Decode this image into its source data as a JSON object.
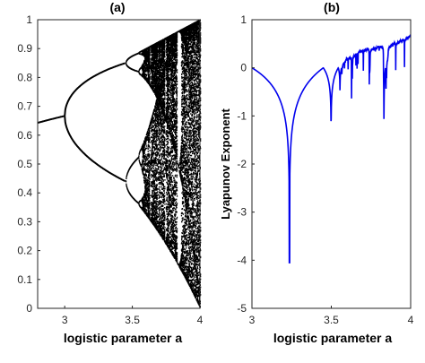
{
  "chart_data": [
    {
      "type": "scatter",
      "title": "(a)",
      "xlabel": "logistic parameter a",
      "ylabel": "",
      "xlim": [
        2.8,
        4
      ],
      "ylim": [
        0,
        1
      ],
      "xticks": [
        "3",
        "3.5",
        "4"
      ],
      "yticks": [
        "0",
        "0.1",
        "0.2",
        "0.3",
        "0.4",
        "0.5",
        "0.6",
        "0.7",
        "0.8",
        "0.9",
        "1"
      ],
      "grid": false,
      "legend": "none",
      "color": "#000000",
      "series": [
        {
          "description_values": {
            "x": [
              2.8,
              2.9,
              3.0,
              3.1,
              3.2,
              3.3,
              3.4,
              3.45,
              3.5,
              3.55,
              3.57,
              4.0
            ],
            "fixed_point_y": [
              0.643,
              0.655,
              0.667
            ],
            "period2_upper_y": [
              0.765,
              0.799,
              0.824,
              0.842,
              0.852
            ],
            "period2_lower_y": [
              0.558,
              0.513,
              0.48,
              0.452,
              0.44
            ]
          }
        }
      ]
    },
    {
      "type": "line",
      "title": "(b)",
      "xlabel": "logistic parameter a",
      "ylabel": "Lyapunov Exponent",
      "xlim": [
        3,
        4
      ],
      "ylim": [
        -5,
        1
      ],
      "xticks": [
        "3",
        "3.5",
        "4"
      ],
      "yticks": [
        "-5",
        "-4",
        "-3",
        "-2",
        "-1",
        "0",
        "1"
      ],
      "grid": false,
      "legend": "none",
      "color": "#0000ee",
      "series": [
        {
          "x": [
            3.0,
            3.05,
            3.1,
            3.15,
            3.2,
            3.22,
            3.236,
            3.25,
            3.3,
            3.35,
            3.4,
            3.44,
            3.45,
            3.47,
            3.49,
            3.499,
            3.51,
            3.54,
            3.55,
            3.57,
            3.6,
            3.63,
            3.65,
            3.7,
            3.74,
            3.75,
            3.8,
            3.83,
            3.845,
            3.86,
            3.9,
            3.95,
            4.0
          ],
          "y": [
            0.0,
            -0.1,
            -0.25,
            -0.45,
            -0.8,
            -1.3,
            -4.05,
            -1.2,
            -0.55,
            -0.3,
            -0.2,
            -0.15,
            -0.3,
            -0.1,
            -0.4,
            -1.15,
            -0.3,
            -0.05,
            -0.5,
            0.0,
            0.15,
            -0.3,
            0.2,
            0.3,
            0.35,
            -0.55,
            0.35,
            0.4,
            -1.35,
            0.45,
            0.5,
            0.55,
            0.69
          ]
        }
      ]
    }
  ]
}
